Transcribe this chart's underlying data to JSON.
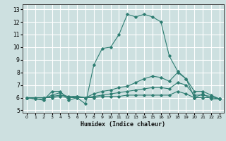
{
  "xlabel": "Humidex (Indice chaleur)",
  "ylabel": "",
  "xlim": [
    -0.5,
    23.5
  ],
  "ylim": [
    4.8,
    13.4
  ],
  "yticks": [
    5,
    6,
    7,
    8,
    9,
    10,
    11,
    12,
    13
  ],
  "xticks": [
    0,
    1,
    2,
    3,
    4,
    5,
    6,
    7,
    8,
    9,
    10,
    11,
    12,
    13,
    14,
    15,
    16,
    17,
    18,
    19,
    20,
    21,
    22,
    23
  ],
  "bg_color": "#cde0e0",
  "grid_color": "#ffffff",
  "line_color": "#2e7d72",
  "series": [
    [
      6.0,
      5.9,
      5.8,
      6.5,
      6.5,
      5.8,
      6.0,
      5.5,
      8.6,
      9.9,
      10.0,
      11.0,
      12.6,
      12.4,
      12.6,
      12.4,
      12.0,
      9.3,
      8.1,
      7.5,
      6.0,
      6.3,
      5.9,
      5.9
    ],
    [
      6.0,
      5.9,
      5.9,
      6.2,
      6.4,
      6.0,
      6.1,
      6.0,
      6.3,
      6.5,
      6.6,
      6.8,
      6.9,
      7.2,
      7.5,
      7.7,
      7.6,
      7.3,
      8.0,
      7.5,
      6.5,
      6.5,
      6.2,
      5.9
    ],
    [
      6.0,
      6.0,
      6.0,
      6.1,
      6.2,
      6.1,
      6.1,
      6.0,
      6.1,
      6.2,
      6.3,
      6.4,
      6.5,
      6.6,
      6.7,
      6.8,
      6.8,
      6.7,
      7.2,
      7.0,
      6.2,
      6.2,
      6.1,
      5.9
    ],
    [
      6.0,
      6.0,
      6.0,
      6.0,
      6.1,
      6.0,
      6.0,
      6.0,
      6.0,
      6.1,
      6.1,
      6.1,
      6.2,
      6.2,
      6.2,
      6.2,
      6.2,
      6.2,
      6.5,
      6.3,
      6.0,
      6.0,
      6.0,
      5.9
    ]
  ]
}
